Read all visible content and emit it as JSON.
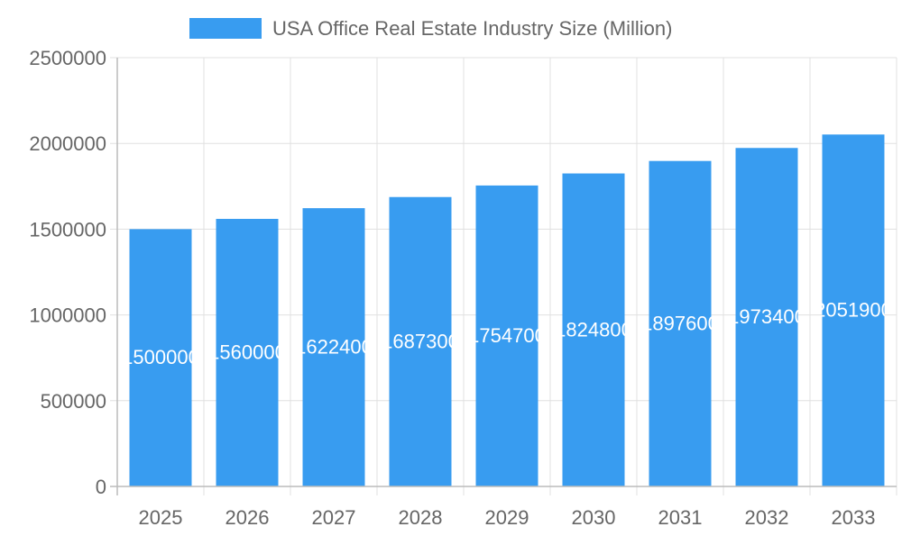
{
  "chart_data": {
    "type": "bar",
    "title": "",
    "legend": {
      "position": "top",
      "entries": [
        "USA Office Real Estate Industry Size (Million)"
      ]
    },
    "categories": [
      "2025",
      "2026",
      "2027",
      "2028",
      "2029",
      "2030",
      "2031",
      "2032",
      "2033"
    ],
    "series": [
      {
        "name": "USA Office Real Estate Industry Size (Million)",
        "values": [
          1500000,
          1560000,
          1622400,
          1687300,
          1754700,
          1824800,
          1897600,
          1973400,
          2051900
        ],
        "color": "#389cf0"
      }
    ],
    "xlabel": "",
    "ylabel": "",
    "ylim": [
      0,
      2500000
    ],
    "yticks": [
      "0",
      "500000",
      "1000000",
      "1500000",
      "2000000",
      "2500000"
    ],
    "grid": true,
    "data_labels": true
  }
}
